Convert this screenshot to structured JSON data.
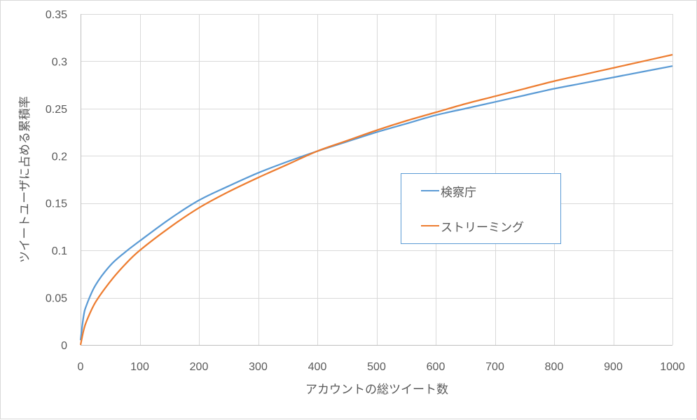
{
  "chart_data": {
    "type": "line",
    "title": "",
    "xlabel": "アカウントの総ツイート数",
    "ylabel": "ツイートユーザに占める累積率",
    "xlim": [
      0,
      1000
    ],
    "ylim": [
      0,
      0.35
    ],
    "x_ticks": [
      "0",
      "100",
      "200",
      "300",
      "400",
      "500",
      "600",
      "700",
      "800",
      "900",
      "1000"
    ],
    "y_ticks": [
      "0",
      "0.05",
      "0.1",
      "0.15",
      "0.2",
      "0.25",
      "0.3",
      "0.35"
    ],
    "grid": true,
    "legend_position": "inside-right",
    "x": [
      0,
      5,
      10,
      25,
      50,
      75,
      100,
      150,
      200,
      250,
      300,
      350,
      400,
      450,
      500,
      550,
      600,
      650,
      700,
      750,
      800,
      850,
      900,
      950,
      1000
    ],
    "series": [
      {
        "name": "検察庁",
        "color": "#5b9bd5",
        "values": [
          0.005,
          0.03,
          0.042,
          0.063,
          0.084,
          0.098,
          0.11,
          0.133,
          0.153,
          0.168,
          0.182,
          0.194,
          0.205,
          0.215,
          0.225,
          0.234,
          0.243,
          0.25,
          0.257,
          0.264,
          0.271,
          0.277,
          0.283,
          0.289,
          0.295
        ]
      },
      {
        "name": "ストリーミング",
        "color": "#ed7d31",
        "values": [
          0.0,
          0.015,
          0.025,
          0.045,
          0.067,
          0.085,
          0.1,
          0.124,
          0.145,
          0.162,
          0.177,
          0.191,
          0.205,
          0.216,
          0.227,
          0.237,
          0.246,
          0.255,
          0.263,
          0.271,
          0.279,
          0.286,
          0.293,
          0.3,
          0.307
        ]
      }
    ]
  },
  "legend": {
    "items": [
      {
        "label": "検察庁",
        "color": "#5b9bd5"
      },
      {
        "label": "ストリーミング",
        "color": "#ed7d31"
      }
    ]
  },
  "axes": {
    "x_title": "アカウントの総ツイート数",
    "y_title": "ツイートユーザに占める累積率"
  }
}
